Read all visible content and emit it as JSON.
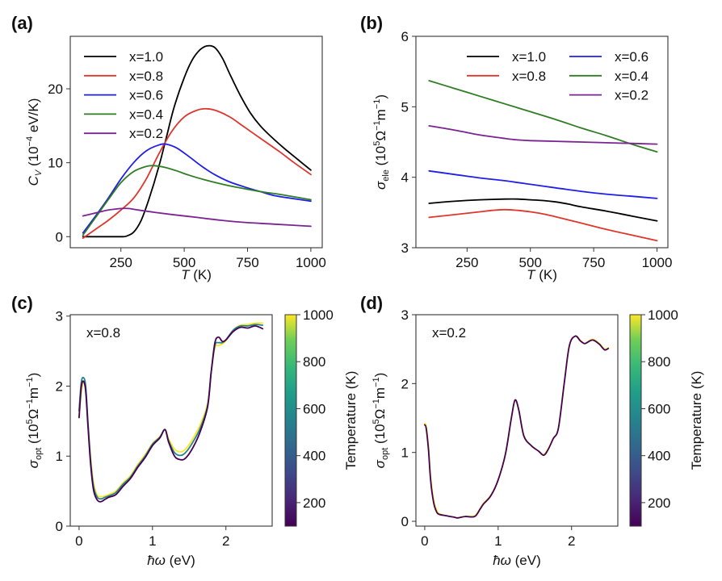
{
  "chart_data": [
    {
      "id": "a",
      "type": "line",
      "panel_label": "(a)",
      "xlabel": "T (K)",
      "ylabel": "C_V (10^-4 eV/K)",
      "xlim": [
        50,
        1045
      ],
      "ylim": [
        -1.5,
        27.1
      ],
      "xticks": [
        250,
        500,
        750,
        1000
      ],
      "yticks": [
        0,
        10,
        20
      ],
      "legend_position": "top-left",
      "legend_columns": 1,
      "grid": false,
      "series": [
        {
          "name": "x=1.0",
          "color": "#000000",
          "x": [
            100,
            150,
            200,
            250,
            270,
            300,
            330,
            360,
            400,
            430,
            460,
            500,
            530,
            560,
            590,
            620,
            650,
            680,
            720,
            760,
            800,
            850,
            900,
            950,
            1000
          ],
          "y": [
            0,
            0,
            0,
            0,
            0.05,
            0.6,
            2.2,
            5.0,
            9.5,
            13.5,
            17.5,
            21.5,
            23.8,
            25.2,
            25.8,
            25.6,
            24.2,
            22.0,
            19.2,
            16.8,
            15.0,
            13.3,
            11.8,
            10.4,
            9.0
          ]
        },
        {
          "name": "x=0.8",
          "color": "#e0352b",
          "x": [
            100,
            150,
            200,
            250,
            300,
            350,
            400,
            450,
            500,
            550,
            590,
            630,
            680,
            730,
            780,
            830,
            880,
            930,
            1000
          ],
          "y": [
            -0.2,
            1.0,
            2.2,
            3.6,
            5.2,
            7.8,
            11.2,
            14.2,
            16.2,
            17.1,
            17.3,
            17.0,
            16.2,
            15.0,
            13.8,
            12.6,
            11.4,
            10.1,
            8.4
          ]
        },
        {
          "name": "x=0.6",
          "color": "#1f1fe8",
          "x": [
            100,
            150,
            200,
            250,
            300,
            350,
            400,
            430,
            470,
            520,
            570,
            620,
            680,
            750,
            800,
            850,
            900,
            1000
          ],
          "y": [
            0.5,
            2.8,
            5.2,
            7.8,
            10.0,
            11.6,
            12.4,
            12.5,
            12.0,
            10.8,
            9.5,
            8.4,
            7.4,
            6.6,
            6.1,
            5.6,
            5.3,
            4.8
          ]
        },
        {
          "name": "x=0.4",
          "color": "#2f7d22",
          "x": [
            100,
            150,
            200,
            250,
            300,
            350,
            380,
            420,
            470,
            520,
            580,
            650,
            720,
            800,
            880,
            1000
          ],
          "y": [
            0.2,
            2.6,
            5.0,
            7.3,
            8.8,
            9.5,
            9.6,
            9.4,
            8.9,
            8.3,
            7.7,
            7.1,
            6.6,
            6.1,
            5.7,
            5.0
          ]
        },
        {
          "name": "x=0.2",
          "color": "#7a2491",
          "x": [
            100,
            150,
            200,
            250,
            280,
            320,
            380,
            450,
            550,
            650,
            750,
            850,
            1000
          ],
          "y": [
            2.8,
            3.2,
            3.6,
            3.8,
            3.8,
            3.6,
            3.3,
            3.0,
            2.6,
            2.2,
            1.9,
            1.7,
            1.4
          ]
        }
      ]
    },
    {
      "id": "b",
      "type": "line",
      "panel_label": "(b)",
      "xlabel": "T (K)",
      "ylabel": "σ_ele (10^5 Ω^-1 m^-1)",
      "xlim": [
        48,
        1043
      ],
      "ylim": [
        3,
        6
      ],
      "xticks": [
        250,
        500,
        750,
        1000
      ],
      "yticks": [
        3,
        4,
        5,
        6
      ],
      "legend_position": "top-right",
      "legend_columns": 2,
      "grid": false,
      "series": [
        {
          "name": "x=1.0",
          "color": "#000000",
          "x": [
            100,
            200,
            300,
            400,
            450,
            500,
            550,
            600,
            650,
            700,
            800,
            900,
            1000
          ],
          "y": [
            3.63,
            3.66,
            3.68,
            3.69,
            3.69,
            3.68,
            3.67,
            3.65,
            3.62,
            3.58,
            3.52,
            3.45,
            3.38
          ]
        },
        {
          "name": "x=0.8",
          "color": "#e0352b",
          "x": [
            100,
            200,
            300,
            350,
            400,
            450,
            500,
            550,
            600,
            700,
            800,
            900,
            1000
          ],
          "y": [
            3.43,
            3.47,
            3.51,
            3.53,
            3.54,
            3.53,
            3.51,
            3.48,
            3.44,
            3.35,
            3.26,
            3.18,
            3.1
          ]
        },
        {
          "name": "x=0.6",
          "color": "#1f1fe8",
          "x": [
            100,
            200,
            300,
            400,
            500,
            600,
            700,
            800,
            900,
            1000
          ],
          "y": [
            4.09,
            4.04,
            3.99,
            3.95,
            3.9,
            3.85,
            3.8,
            3.76,
            3.73,
            3.7
          ]
        },
        {
          "name": "x=0.4",
          "color": "#2f7d22",
          "x": [
            100,
            200,
            300,
            400,
            500,
            600,
            700,
            800,
            900,
            1000
          ],
          "y": [
            5.37,
            5.26,
            5.15,
            5.04,
            4.93,
            4.82,
            4.7,
            4.59,
            4.47,
            4.36
          ]
        },
        {
          "name": "x=0.2",
          "color": "#7a2491",
          "x": [
            100,
            200,
            300,
            400,
            450,
            500,
            600,
            700,
            800,
            900,
            1000
          ],
          "y": [
            4.73,
            4.67,
            4.6,
            4.55,
            4.53,
            4.52,
            4.51,
            4.5,
            4.49,
            4.48,
            4.47
          ]
        }
      ]
    },
    {
      "id": "c",
      "type": "line",
      "panel_label": "(c)",
      "annotation": "x=0.8",
      "xlabel": "ħω (eV)",
      "ylabel": "σ_opt (10^5 Ω^-1 m^-1)",
      "xlim": [
        -0.12,
        2.63
      ],
      "ylim": [
        0,
        3.02
      ],
      "xticks": [
        0,
        1,
        2
      ],
      "yticks": [
        0,
        1,
        2,
        3
      ],
      "grid": false,
      "colorbar": {
        "label": "Temperature (K)",
        "range": [
          100,
          1000
        ],
        "ticks": [
          200,
          400,
          600,
          800,
          1000
        ],
        "colormap": "viridis"
      },
      "series": [
        {
          "name": "T=1000 K",
          "temperature": 1000,
          "x": [
            0,
            0.03,
            0.06,
            0.09,
            0.12,
            0.16,
            0.2,
            0.25,
            0.3,
            0.35,
            0.4,
            0.5,
            0.6,
            0.7,
            0.8,
            0.9,
            1.0,
            1.1,
            1.17,
            1.22,
            1.3,
            1.38,
            1.45,
            1.55,
            1.65,
            1.75,
            1.8,
            1.85,
            1.9,
            1.95,
            2.0,
            2.1,
            2.2,
            2.3,
            2.4,
            2.5
          ],
          "y": [
            1.55,
            1.9,
            2.05,
            1.95,
            1.5,
            0.95,
            0.6,
            0.44,
            0.42,
            0.43,
            0.45,
            0.5,
            0.62,
            0.72,
            0.88,
            1.02,
            1.18,
            1.28,
            1.38,
            1.25,
            1.1,
            1.06,
            1.1,
            1.25,
            1.45,
            1.75,
            2.2,
            2.55,
            2.58,
            2.6,
            2.65,
            2.8,
            2.87,
            2.88,
            2.9,
            2.9
          ]
        },
        {
          "name": "T=550 K",
          "temperature": 550,
          "x": [
            0,
            0.03,
            0.06,
            0.09,
            0.12,
            0.16,
            0.2,
            0.25,
            0.3,
            0.35,
            0.4,
            0.5,
            0.6,
            0.7,
            0.8,
            0.9,
            1.0,
            1.1,
            1.17,
            1.22,
            1.3,
            1.38,
            1.45,
            1.55,
            1.65,
            1.75,
            1.8,
            1.85,
            1.9,
            1.95,
            2.0,
            2.1,
            2.2,
            2.3,
            2.4,
            2.5
          ],
          "y": [
            1.65,
            2.05,
            2.12,
            2.0,
            1.5,
            0.9,
            0.55,
            0.41,
            0.39,
            0.41,
            0.43,
            0.48,
            0.6,
            0.7,
            0.86,
            1.0,
            1.17,
            1.27,
            1.38,
            1.22,
            1.05,
            1.01,
            1.05,
            1.2,
            1.4,
            1.72,
            2.2,
            2.58,
            2.62,
            2.62,
            2.66,
            2.8,
            2.86,
            2.86,
            2.88,
            2.87
          ]
        },
        {
          "name": "T=100 K",
          "temperature": 100,
          "x": [
            0,
            0.03,
            0.06,
            0.09,
            0.12,
            0.16,
            0.2,
            0.25,
            0.3,
            0.35,
            0.4,
            0.5,
            0.6,
            0.7,
            0.8,
            0.9,
            1.0,
            1.1,
            1.17,
            1.22,
            1.3,
            1.38,
            1.45,
            1.55,
            1.65,
            1.75,
            1.8,
            1.85,
            1.9,
            1.95,
            2.0,
            2.1,
            2.2,
            2.3,
            2.4,
            2.5
          ],
          "y": [
            1.55,
            1.98,
            2.07,
            1.93,
            1.45,
            0.85,
            0.5,
            0.37,
            0.35,
            0.38,
            0.41,
            0.45,
            0.57,
            0.68,
            0.84,
            0.98,
            1.15,
            1.26,
            1.38,
            1.2,
            1.0,
            0.95,
            0.97,
            1.12,
            1.35,
            1.7,
            2.2,
            2.62,
            2.7,
            2.64,
            2.66,
            2.78,
            2.84,
            2.83,
            2.86,
            2.82
          ]
        }
      ]
    },
    {
      "id": "d",
      "type": "line",
      "panel_label": "(d)",
      "annotation": "x=0.2",
      "xlabel": "ħω (eV)",
      "ylabel": "σ_opt (10^5 Ω^-1 m^-1)",
      "xlim": [
        -0.12,
        2.63
      ],
      "ylim": [
        -0.07,
        3.0
      ],
      "xticks": [
        0,
        1,
        2
      ],
      "yticks": [
        0,
        1,
        2,
        3
      ],
      "grid": false,
      "colorbar": {
        "label": "Temperature (K)",
        "range": [
          100,
          1000
        ],
        "ticks": [
          200,
          400,
          600,
          800,
          1000
        ],
        "colormap": "viridis"
      },
      "series": [
        {
          "name": "T=1000 K",
          "temperature": 1000,
          "x": [
            0,
            0.02,
            0.05,
            0.08,
            0.12,
            0.16,
            0.2,
            0.3,
            0.4,
            0.45,
            0.55,
            0.68,
            0.75,
            0.8,
            0.9,
            1.0,
            1.1,
            1.18,
            1.23,
            1.28,
            1.35,
            1.45,
            1.55,
            1.62,
            1.68,
            1.75,
            1.82,
            1.9,
            1.97,
            2.05,
            2.12,
            2.18,
            2.25,
            2.3,
            2.38,
            2.45,
            2.5
          ],
          "y": [
            1.42,
            1.38,
            1.1,
            0.65,
            0.32,
            0.17,
            0.11,
            0.08,
            0.06,
            0.05,
            0.07,
            0.08,
            0.18,
            0.26,
            0.38,
            0.6,
            0.98,
            1.5,
            1.76,
            1.62,
            1.25,
            1.1,
            1.02,
            0.97,
            1.05,
            1.2,
            1.35,
            2.0,
            2.55,
            2.69,
            2.63,
            2.58,
            2.63,
            2.64,
            2.58,
            2.5,
            2.52
          ]
        },
        {
          "name": "T=100 K",
          "temperature": 100,
          "x": [
            0,
            0.02,
            0.05,
            0.08,
            0.12,
            0.16,
            0.2,
            0.3,
            0.4,
            0.45,
            0.55,
            0.68,
            0.75,
            0.8,
            0.9,
            1.0,
            1.1,
            1.18,
            1.23,
            1.28,
            1.35,
            1.45,
            1.55,
            1.62,
            1.68,
            1.75,
            1.82,
            1.9,
            1.97,
            2.05,
            2.12,
            2.18,
            2.25,
            2.3,
            2.38,
            2.45,
            2.5
          ],
          "y": [
            1.4,
            1.35,
            1.05,
            0.6,
            0.28,
            0.14,
            0.1,
            0.08,
            0.06,
            0.05,
            0.07,
            0.07,
            0.17,
            0.25,
            0.37,
            0.6,
            0.98,
            1.5,
            1.76,
            1.62,
            1.24,
            1.1,
            1.02,
            0.96,
            1.04,
            1.2,
            1.35,
            2.0,
            2.55,
            2.69,
            2.62,
            2.58,
            2.62,
            2.63,
            2.57,
            2.49,
            2.51
          ]
        }
      ]
    }
  ]
}
